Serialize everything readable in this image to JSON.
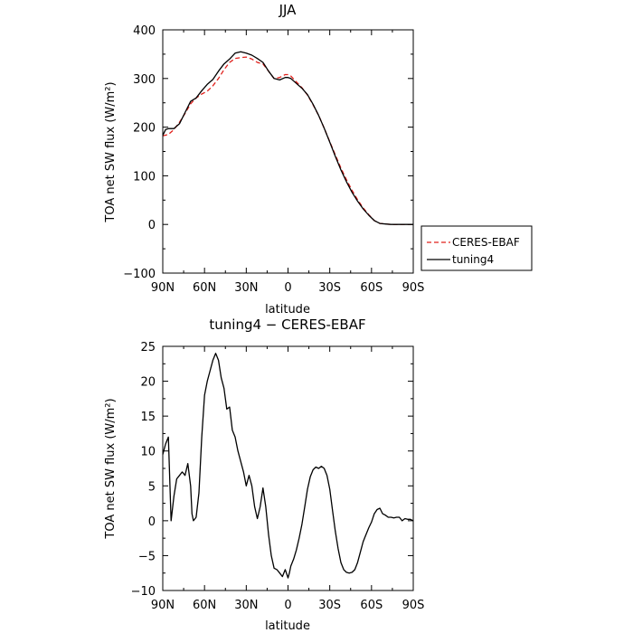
{
  "chart_data": [
    {
      "type": "line",
      "title": "JJA",
      "xlabel": "latitude",
      "ylabel": "TOA net SW flux (W/m²)",
      "xlim": [
        90,
        -90
      ],
      "ylim": [
        -100,
        400
      ],
      "xticks": [
        90,
        60,
        30,
        0,
        -30,
        -60,
        -90
      ],
      "xtick_labels": [
        "90N",
        "60N",
        "30N",
        "0",
        "30S",
        "60S",
        "90S"
      ],
      "yticks": [
        -100,
        0,
        100,
        200,
        300,
        400
      ],
      "ytick_labels": [
        "−100",
        "0",
        "100",
        "200",
        "300",
        "400"
      ],
      "grid": false,
      "legend": "outside-right",
      "series": [
        {
          "name": "CERES-EBAF",
          "color": "#e0201b",
          "dash": "dashed",
          "x": [
            90,
            86,
            82,
            78,
            74,
            70,
            66,
            62,
            58,
            54,
            50,
            46,
            42,
            38,
            34,
            30,
            26,
            22,
            18,
            14,
            10,
            6,
            2,
            0,
            -2,
            -6,
            -10,
            -14,
            -18,
            -22,
            -26,
            -30,
            -34,
            -38,
            -42,
            -46,
            -50,
            -54,
            -58,
            -62,
            -66,
            -70,
            -74,
            -78,
            -82,
            -86,
            -90
          ],
          "values": [
            182,
            185,
            195,
            210,
            228,
            248,
            260,
            268,
            274,
            285,
            300,
            318,
            333,
            341,
            343,
            344,
            340,
            333,
            330,
            315,
            300,
            302,
            308,
            308,
            305,
            293,
            281,
            266,
            246,
            224,
            198,
            170,
            143,
            116,
            92,
            70,
            51,
            34,
            20,
            8,
            2,
            1,
            0,
            0,
            0,
            0,
            0
          ]
        },
        {
          "name": "tuning4",
          "color": "#000000",
          "dash": "solid",
          "x": [
            90,
            88,
            86,
            82,
            78,
            74,
            70,
            66,
            62,
            58,
            54,
            50,
            46,
            42,
            38,
            34,
            30,
            26,
            22,
            18,
            14,
            10,
            6,
            2,
            0,
            -2,
            -6,
            -10,
            -14,
            -18,
            -22,
            -26,
            -30,
            -34,
            -38,
            -42,
            -46,
            -50,
            -54,
            -58,
            -62,
            -66,
            -70,
            -74,
            -78,
            -82,
            -86,
            -90
          ],
          "values": [
            183,
            195,
            197,
            197,
            207,
            230,
            253,
            260,
            275,
            288,
            298,
            315,
            330,
            340,
            352,
            355,
            352,
            348,
            341,
            333,
            315,
            300,
            297,
            302,
            302,
            300,
            290,
            280,
            267,
            247,
            224,
            198,
            169,
            140,
            112,
            88,
            66,
            48,
            32,
            19,
            8,
            2,
            1,
            0,
            0,
            0,
            0,
            0
          ]
        }
      ]
    },
    {
      "type": "line",
      "title": "tuning4 − CERES-EBAF",
      "xlabel": "latitude",
      "ylabel": "TOA net SW flux (W/m²)",
      "xlim": [
        90,
        -90
      ],
      "ylim": [
        -10,
        25
      ],
      "xticks": [
        90,
        60,
        30,
        0,
        -30,
        -60,
        -90
      ],
      "xtick_labels": [
        "90N",
        "60N",
        "30N",
        "0",
        "30S",
        "60S",
        "90S"
      ],
      "yticks": [
        -10,
        -5,
        0,
        5,
        10,
        15,
        20,
        25
      ],
      "ytick_labels": [
        "−10",
        "−5",
        "0",
        "5",
        "10",
        "15",
        "20",
        "25"
      ],
      "grid": false,
      "series": [
        {
          "name": "",
          "color": "#000000",
          "dash": "solid",
          "x": [
            90,
            88,
            86,
            84,
            82,
            80,
            78,
            76,
            74,
            72,
            70,
            69,
            68,
            66,
            64,
            62,
            60,
            58,
            56,
            54,
            52,
            50,
            48,
            46,
            44,
            42,
            40,
            38,
            36,
            34,
            32,
            30,
            28,
            26,
            24,
            22,
            20,
            18,
            16,
            14,
            12,
            10,
            8,
            6,
            4,
            2,
            1,
            0,
            -1,
            -2,
            -4,
            -6,
            -8,
            -10,
            -12,
            -14,
            -16,
            -18,
            -20,
            -22,
            -24,
            -26,
            -28,
            -30,
            -32,
            -34,
            -36,
            -38,
            -40,
            -42,
            -44,
            -46,
            -48,
            -50,
            -52,
            -54,
            -56,
            -58,
            -60,
            -62,
            -64,
            -66,
            -68,
            -70,
            -72,
            -74,
            -76,
            -78,
            -80,
            -82,
            -84,
            -86,
            -88,
            -90
          ],
          "values": [
            9.5,
            11,
            12,
            0,
            3.5,
            6,
            6.5,
            7,
            6.5,
            8.2,
            5,
            1,
            0,
            0.5,
            4,
            12,
            18,
            20,
            21.5,
            23,
            24,
            23,
            20.5,
            19,
            16,
            16.3,
            13,
            12,
            10,
            8.5,
            7,
            5,
            6.5,
            5,
            2,
            0.3,
            2,
            4.7,
            2,
            -2,
            -5,
            -6.8,
            -7,
            -7.5,
            -8,
            -7,
            -7.6,
            -8.2,
            -7.5,
            -6.5,
            -5.5,
            -4.2,
            -2.5,
            -0.5,
            2,
            4.5,
            6.3,
            7.3,
            7.7,
            7.5,
            7.8,
            7.5,
            6.5,
            4.5,
            1.5,
            -1.5,
            -4,
            -6,
            -7,
            -7.4,
            -7.5,
            -7.4,
            -7,
            -6,
            -4.5,
            -3,
            -2,
            -1,
            -0.2,
            1,
            1.6,
            1.8,
            1,
            0.8,
            0.5,
            0.5,
            0.4,
            0.5,
            0.5,
            0,
            0.3,
            0.2,
            0.2,
            0
          ]
        }
      ]
    }
  ]
}
